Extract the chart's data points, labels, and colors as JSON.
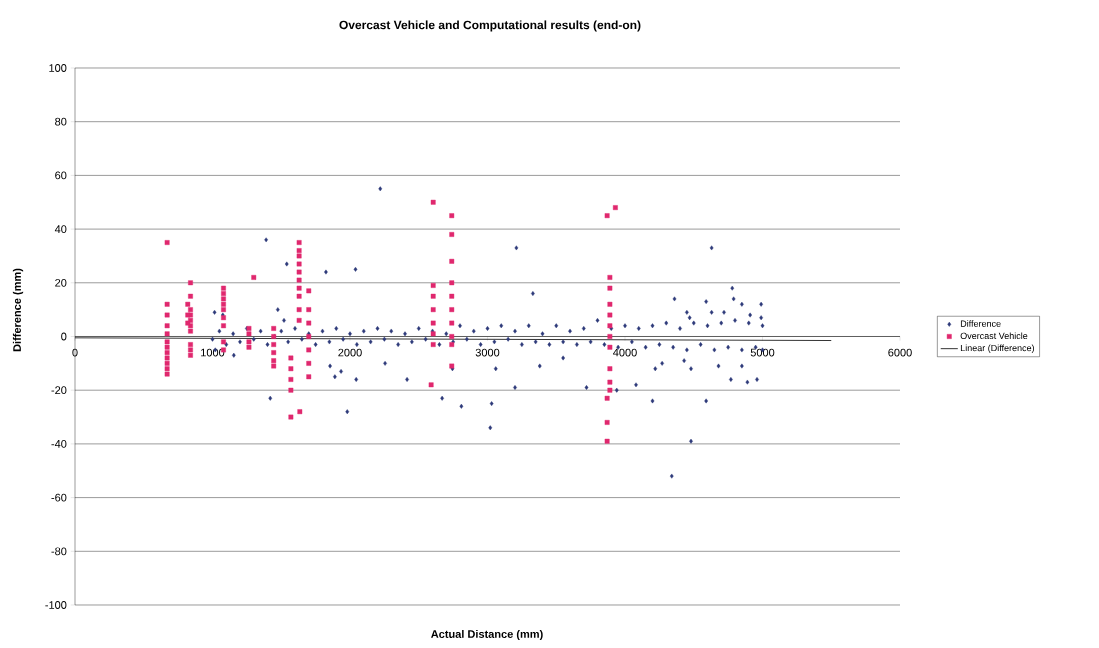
{
  "chart_data": {
    "type": "scatter",
    "title": "Overcast Vehicle and Computational results (end-on)",
    "xlabel": "Actual Distance (mm)",
    "ylabel": "Difference (mm)",
    "xlim": [
      0,
      6000
    ],
    "ylim": [
      -100,
      100
    ],
    "xticks": [
      0,
      1000,
      2000,
      3000,
      4000,
      5000,
      6000
    ],
    "yticks": [
      -100,
      -80,
      -60,
      -40,
      -20,
      0,
      20,
      40,
      60,
      80,
      100
    ],
    "grid": "y",
    "legend": "right",
    "series": [
      {
        "name": "Difference",
        "color": "#2e3a7a",
        "marker": "diamond",
        "x": [
          1000,
          1050,
          1100,
          1150,
          1200,
          1250,
          1300,
          1350,
          1400,
          1450,
          1500,
          1550,
          1600,
          1650,
          1700,
          1750,
          1800,
          1850,
          1900,
          1950,
          2000,
          2050,
          2100,
          2150,
          2200,
          2250,
          2300,
          2350,
          2400,
          2450,
          2500,
          2550,
          2600,
          2650,
          2700,
          2750,
          2800,
          2850,
          2900,
          2950,
          3000,
          3050,
          3100,
          3150,
          3200,
          3250,
          3300,
          3350,
          3400,
          3450,
          3500,
          3550,
          3600,
          3650,
          3700,
          3750,
          3800,
          3850,
          3900,
          3950,
          4000,
          4050,
          4100,
          4150,
          4200,
          4250,
          4300,
          4350,
          4400,
          4450,
          4500,
          4550,
          4600,
          4650,
          4700,
          4750,
          4800,
          4850,
          4900,
          4950,
          5000,
          5000,
          2220,
          1390,
          1540,
          1825,
          2040,
          1015,
          1075,
          1475,
          1520,
          3330,
          3210,
          4630,
          4780,
          4790,
          4360,
          4590,
          4630,
          4720,
          4850,
          4910,
          4990,
          4990,
          4450,
          4470,
          1420,
          1980,
          2045,
          1855,
          1890,
          1935,
          2415,
          2255,
          2670,
          2745,
          2810,
          1155,
          1020,
          3020,
          3030,
          3060,
          3200,
          3380,
          3550,
          3720,
          3940,
          4080,
          4200,
          4220,
          4270,
          4430,
          4480,
          4480,
          4590,
          4680,
          4770,
          4890,
          4960,
          4850,
          4340
        ],
        "values": [
          -1,
          2,
          -3,
          1,
          -2,
          3,
          -1,
          2,
          -3,
          0,
          2,
          -2,
          3,
          -1,
          1,
          -3,
          2,
          -2,
          3,
          -1,
          1,
          -3,
          2,
          -2,
          3,
          -1,
          2,
          -3,
          1,
          -2,
          3,
          -1,
          2,
          -3,
          1,
          -2,
          4,
          -1,
          2,
          -3,
          3,
          -2,
          4,
          -1,
          2,
          -3,
          4,
          -2,
          1,
          -3,
          4,
          -2,
          2,
          -3,
          3,
          -2,
          6,
          -3,
          3,
          -4,
          4,
          -2,
          3,
          -4,
          4,
          -3,
          5,
          -4,
          3,
          -5,
          5,
          -3,
          4,
          -5,
          5,
          -4,
          6,
          -5,
          5,
          -4,
          4,
          -5,
          55,
          36,
          27,
          24,
          25,
          9,
          8,
          10,
          6,
          16,
          33,
          33,
          18,
          14,
          14,
          13,
          9,
          9,
          12,
          8,
          12,
          7,
          9,
          7,
          -23,
          -28,
          -16,
          -11,
          -15,
          -13,
          -16,
          -10,
          -23,
          -12,
          -26,
          -7,
          -5,
          -34,
          -25,
          -12,
          -19,
          -11,
          -8,
          -19,
          -20,
          -18,
          -24,
          -12,
          -10,
          -9,
          -12,
          -39,
          -24,
          -11,
          -16,
          -17,
          -16,
          -11,
          -52
        ]
      },
      {
        "name": "Overcast Vehicle",
        "color": "#e0286e",
        "marker": "square",
        "x": [
          670,
          670,
          670,
          670,
          670,
          670,
          670,
          670,
          670,
          670,
          670,
          670,
          840,
          840,
          840,
          840,
          840,
          840,
          840,
          840,
          840,
          840,
          820,
          820,
          820,
          1080,
          1080,
          1080,
          1080,
          1080,
          1080,
          1080,
          1080,
          1080,
          1300,
          1265,
          1265,
          1265,
          1265,
          1445,
          1445,
          1445,
          1445,
          1445,
          1445,
          1570,
          1570,
          1570,
          1570,
          1570,
          1635,
          1630,
          1630,
          1630,
          1630,
          1630,
          1630,
          1630,
          1630,
          1630,
          1630,
          1700,
          1700,
          1700,
          1700,
          1700,
          1700,
          1700,
          2605,
          2605,
          2605,
          2605,
          2605,
          2605,
          2605,
          2590,
          2740,
          2740,
          2740,
          2740,
          2740,
          2740,
          2740,
          2740,
          2740,
          2740,
          3870,
          3930,
          3890,
          3890,
          3890,
          3890,
          3890,
          3890,
          3890,
          3890,
          3890,
          3890,
          3870,
          3870,
          3870
        ],
        "values": [
          35,
          12,
          8,
          4,
          1,
          -2,
          -4,
          -6,
          -8,
          -10,
          -12,
          -14,
          20,
          15,
          10,
          8,
          6,
          4,
          2,
          -3,
          -5,
          -7,
          12,
          8,
          5,
          18,
          16,
          14,
          12,
          10,
          7,
          4,
          -2,
          -5,
          22,
          3,
          1,
          -2,
          -4,
          3,
          0,
          -3,
          -6,
          -9,
          -11,
          -8,
          -12,
          -16,
          -20,
          -30,
          -28,
          35,
          32,
          30,
          27,
          24,
          21,
          18,
          15,
          10,
          6,
          17,
          10,
          5,
          0,
          -5,
          -10,
          -15,
          50,
          19,
          15,
          10,
          5,
          1,
          -3,
          -18,
          45,
          38,
          28,
          20,
          15,
          10,
          5,
          0,
          -3,
          -11,
          45,
          48,
          22,
          18,
          12,
          8,
          4,
          0,
          -4,
          -12,
          -17,
          -20,
          -23,
          -32,
          -39
        ]
      },
      {
        "name": "Linear (Difference)",
        "type": "line",
        "color": "#000000",
        "marker": "none",
        "line_style": "solid",
        "x": [
          0,
          5500
        ],
        "values": [
          -0.5,
          -1.5
        ]
      }
    ]
  }
}
